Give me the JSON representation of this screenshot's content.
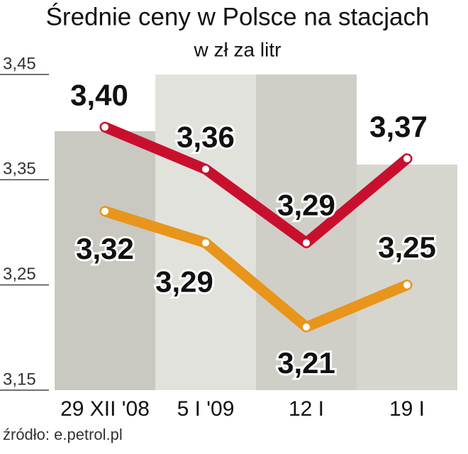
{
  "chart_data": {
    "type": "line",
    "title": "Średnie ceny w Polsce na stacjach",
    "subtitle": "w zł za litr",
    "source": "źródło: e.petrol.pl",
    "categories": [
      "29 XII '08",
      "5 I '09",
      "12 I",
      "19 I"
    ],
    "series": [
      {
        "color": "#c8102e",
        "values": [
          3.4,
          3.36,
          3.29,
          3.37
        ],
        "value_labels": [
          "3,40",
          "3,36",
          "3,29",
          "3,37"
        ]
      },
      {
        "color": "#e8951c",
        "values": [
          3.32,
          3.29,
          3.21,
          3.25
        ],
        "value_labels": [
          "3,32",
          "3,29",
          "3,21",
          "3,25"
        ]
      }
    ],
    "ylim": [
      3.15,
      3.45
    ],
    "yticks": [
      {
        "value": 3.15,
        "label": "3,15"
      },
      {
        "value": 3.25,
        "label": "3,25"
      },
      {
        "value": 3.35,
        "label": "3,35"
      },
      {
        "value": 3.45,
        "label": "3,45"
      }
    ]
  }
}
